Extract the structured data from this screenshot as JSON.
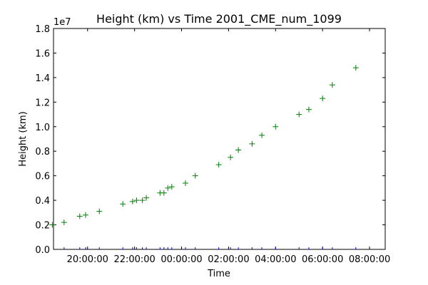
{
  "chart_data": {
    "type": "scatter",
    "title": "Height (km) vs Time 2001_CME_num_1099",
    "xlabel": "Time",
    "ylabel": "Height (km)",
    "y_offset_label": "1e7",
    "marker": "+",
    "marker_color": "#008000",
    "rug_color": "#0000ff",
    "xlim": [
      "18:33:00",
      "08:40:00"
    ],
    "ylim": [
      0,
      18000000
    ],
    "xticks": [
      {
        "time": "20:00:00",
        "label": "20:00:00"
      },
      {
        "time": "22:00:00",
        "label": "22:00:00"
      },
      {
        "time": "00:00:00",
        "label": "00:00:00"
      },
      {
        "time": "02:00:00",
        "label": "02:00:00"
      },
      {
        "time": "04:00:00",
        "label": "04:00:00"
      },
      {
        "time": "06:00:00",
        "label": "06:00:00"
      },
      {
        "time": "08:00:00",
        "label": "08:00:00"
      }
    ],
    "yticks": [
      {
        "value": 0,
        "label": "0.0"
      },
      {
        "value": 2000000,
        "label": "0.2"
      },
      {
        "value": 4000000,
        "label": "0.4"
      },
      {
        "value": 6000000,
        "label": "0.6"
      },
      {
        "value": 8000000,
        "label": "0.8"
      },
      {
        "value": 10000000,
        "label": "1.0"
      },
      {
        "value": 12000000,
        "label": "1.2"
      },
      {
        "value": 14000000,
        "label": "1.4"
      },
      {
        "value": 16000000,
        "label": "1.6"
      },
      {
        "value": 18000000,
        "label": "1.8"
      }
    ],
    "points": [
      {
        "time": "18:30:00",
        "height": 2000000
      },
      {
        "time": "19:00:00",
        "height": 2200000
      },
      {
        "time": "19:40:00",
        "height": 2700000
      },
      {
        "time": "19:55:00",
        "height": 2800000
      },
      {
        "time": "20:30:00",
        "height": 3100000
      },
      {
        "time": "21:30:00",
        "height": 3700000
      },
      {
        "time": "21:55:00",
        "height": 3900000
      },
      {
        "time": "22:05:00",
        "height": 4000000
      },
      {
        "time": "22:20:00",
        "height": 4000000
      },
      {
        "time": "22:30:00",
        "height": 4200000
      },
      {
        "time": "23:05:00",
        "height": 4600000
      },
      {
        "time": "23:15:00",
        "height": 4600000
      },
      {
        "time": "23:25:00",
        "height": 5000000
      },
      {
        "time": "23:35:00",
        "height": 5100000
      },
      {
        "time": "00:10:00",
        "height": 5400000
      },
      {
        "time": "00:35:00",
        "height": 6000000
      },
      {
        "time": "01:35:00",
        "height": 6900000
      },
      {
        "time": "02:05:00",
        "height": 7500000
      },
      {
        "time": "02:25:00",
        "height": 8100000
      },
      {
        "time": "03:00:00",
        "height": 8600000
      },
      {
        "time": "03:25:00",
        "height": 9300000
      },
      {
        "time": "04:00:00",
        "height": 10000000
      },
      {
        "time": "05:00:00",
        "height": 11000000
      },
      {
        "time": "05:25:00",
        "height": 11400000
      },
      {
        "time": "06:00:00",
        "height": 12300000
      },
      {
        "time": "06:25:00",
        "height": 13400000
      },
      {
        "time": "07:25:00",
        "height": 14800000
      }
    ]
  }
}
